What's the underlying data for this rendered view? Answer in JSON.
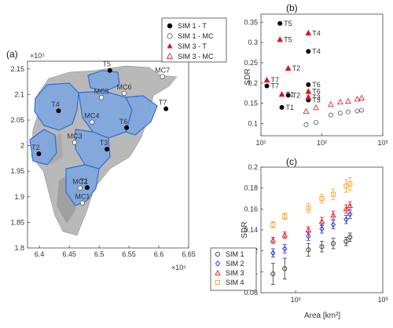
{
  "panel_labels": {
    "a": "(a)",
    "b": "(b)",
    "c": "(c)"
  },
  "colors": {
    "black": "#000000",
    "red": "#e3121e",
    "blue": "#2330d4",
    "orange": "#f0a32b",
    "catchment_fill": "#7fa6dd",
    "catchment_edge": "#2e6fd1",
    "terrain_light": "#d9d9d9",
    "terrain_dark": "#8a8a8a"
  },
  "chart_data": [
    {
      "panel": "a",
      "type": "map",
      "x_ticks": [
        "6.4",
        "6.45",
        "6.5",
        "6.55",
        "6.6",
        "6.65"
      ],
      "x_exponent": "×10⁵",
      "y_ticks": [
        "1.8",
        "1.85",
        "1.9",
        "1.95",
        "2",
        "2.05",
        "2.1",
        "2.15"
      ],
      "y_exponent": "×10⁵",
      "xlim": [
        638000,
        665000
      ],
      "ylim": [
        180000,
        216500
      ],
      "legend": [
        "SIM 1 - T",
        "SIM 1 - MC",
        "SIM 3 - T",
        "SIM 3 - MC"
      ],
      "sites": [
        {
          "name": "T1",
          "x": 648000,
          "y": 191800,
          "kind": "T"
        },
        {
          "name": "T2",
          "x": 639900,
          "y": 198400,
          "kind": "T"
        },
        {
          "name": "T3",
          "x": 651300,
          "y": 199300,
          "kind": "T"
        },
        {
          "name": "T4",
          "x": 643200,
          "y": 206800,
          "kind": "T"
        },
        {
          "name": "T5",
          "x": 651800,
          "y": 214700,
          "kind": "T"
        },
        {
          "name": "T6",
          "x": 654600,
          "y": 203500,
          "kind": "T"
        },
        {
          "name": "T7",
          "x": 661200,
          "y": 207200,
          "kind": "T"
        },
        {
          "name": "MC1",
          "x": 647200,
          "y": 188800,
          "kind": "MC"
        },
        {
          "name": "MC2",
          "x": 646800,
          "y": 191700,
          "kind": "MC"
        },
        {
          "name": "MC3",
          "x": 645900,
          "y": 200600,
          "kind": "MC"
        },
        {
          "name": "MC4",
          "x": 648800,
          "y": 204600,
          "kind": "MC"
        },
        {
          "name": "MC5",
          "x": 650400,
          "y": 209400,
          "kind": "MC"
        },
        {
          "name": "MC6",
          "x": 654200,
          "y": 210200,
          "kind": "MC"
        },
        {
          "name": "MC7",
          "x": 660600,
          "y": 213500,
          "kind": "MC"
        }
      ]
    },
    {
      "panel": "b",
      "type": "scatter",
      "xscale": "log",
      "xlim": [
        10,
        1000
      ],
      "ylim": [
        0.07,
        0.37
      ],
      "ylabel": "SDR",
      "x_ticks": [
        "10¹",
        "10²",
        "10³"
      ],
      "y_ticks": [
        "0.1",
        "0.15",
        "0.2",
        "0.25",
        "0.3",
        "0.35"
      ],
      "series": [
        {
          "name": "SIM 1 - T",
          "points": [
            [
              12.5,
              0.193,
              "T7"
            ],
            [
              20.5,
              0.347,
              "T5"
            ],
            [
              22,
              0.14,
              "T1"
            ],
            [
              28,
              0.17,
              "T2"
            ],
            [
              60,
              0.196,
              "T6"
            ],
            [
              60,
              0.278,
              "T4"
            ],
            [
              60,
              0.158,
              "T3"
            ]
          ]
        },
        {
          "name": "SIM 1 - MC",
          "points": [
            [
              55,
              0.097
            ],
            [
              80,
              0.103
            ],
            [
              140,
              0.121
            ],
            [
              200,
              0.126
            ],
            [
              270,
              0.129
            ],
            [
              380,
              0.131
            ],
            [
              450,
              0.133
            ]
          ]
        },
        {
          "name": "SIM 3 - T",
          "points": [
            [
              12.5,
              0.207,
              "T7"
            ],
            [
              20.5,
              0.307,
              "T5"
            ],
            [
              22,
              0.172,
              "T1"
            ],
            [
              28,
              0.236,
              "T2"
            ],
            [
              60,
              0.179,
              "T6"
            ],
            [
              60,
              0.323,
              "T4"
            ],
            [
              60,
              0.165,
              "T3"
            ]
          ]
        },
        {
          "name": "SIM 3 - MC",
          "points": [
            [
              55,
              0.13
            ],
            [
              80,
              0.139
            ],
            [
              140,
              0.147
            ],
            [
              200,
              0.153
            ],
            [
              270,
              0.155
            ],
            [
              380,
              0.16
            ],
            [
              450,
              0.163
            ]
          ]
        }
      ]
    },
    {
      "panel": "c",
      "type": "scatter",
      "xscale": "log",
      "xlim": [
        40,
        1000
      ],
      "ylim": [
        0.08,
        0.2
      ],
      "xlabel": "Area [km²]",
      "ylabel": "SDR",
      "x_ticks": [
        "10²",
        "10³"
      ],
      "y_ticks": [
        "0.08",
        "0.1",
        "0.12",
        "0.14",
        "0.16",
        "0.18",
        "0.2"
      ],
      "x": [
        55,
        75,
        140,
        200,
        270,
        380,
        420
      ],
      "series": [
        {
          "name": "SIM 1",
          "values": [
            0.098,
            0.103,
            0.121,
            0.124,
            0.127,
            0.129,
            0.133
          ],
          "err": [
            0.01,
            0.01,
            0.006,
            0.005,
            0.005,
            0.004,
            0.004
          ]
        },
        {
          "name": "SIM 2",
          "values": [
            0.118,
            0.122,
            0.134,
            0.141,
            0.145,
            0.15,
            0.155
          ],
          "err": [
            0.004,
            0.004,
            0.004,
            0.004,
            0.004,
            0.004,
            0.004
          ]
        },
        {
          "name": "SIM 3",
          "values": [
            0.13,
            0.135,
            0.14,
            0.148,
            0.154,
            0.16,
            0.163
          ],
          "err": [
            0.003,
            0.003,
            0.003,
            0.004,
            0.004,
            0.004,
            0.004
          ]
        },
        {
          "name": "SIM 4",
          "values": [
            0.145,
            0.153,
            0.161,
            0.17,
            0.174,
            0.182,
            0.184
          ],
          "err": [
            0.003,
            0.003,
            0.004,
            0.004,
            0.005,
            0.006,
            0.006
          ]
        }
      ]
    }
  ]
}
